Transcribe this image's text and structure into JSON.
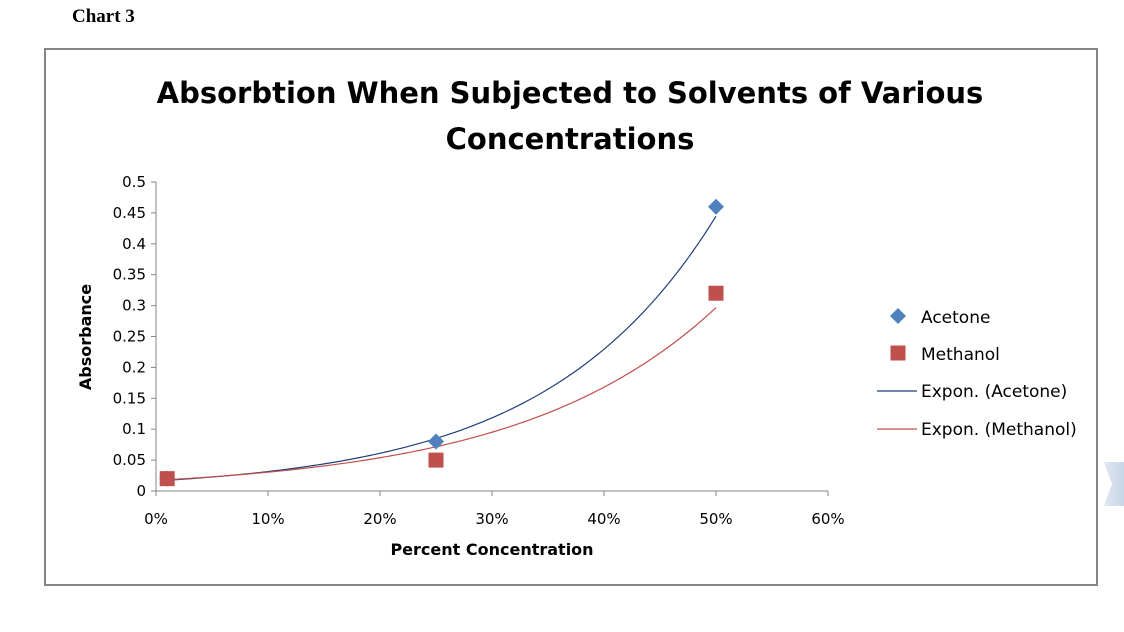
{
  "page": {
    "heading": "Chart 3"
  },
  "colors": {
    "acetone": "#4f81bd",
    "methanol": "#c0504d",
    "acetone_trend": "#1f3f7a",
    "methanol_trend": "#c0504d",
    "axis": "#868686"
  },
  "chart_data": {
    "type": "scatter",
    "title": "Absorbtion When Subjected to Solvents of Various Concentrations",
    "xlabel": "Percent Concentration",
    "ylabel": "Absorbance",
    "xlim": [
      0,
      0.6
    ],
    "ylim": [
      0,
      0.5
    ],
    "x_ticks": [
      0,
      0.1,
      0.2,
      0.3,
      0.4,
      0.5,
      0.6
    ],
    "x_tick_labels": [
      "0%",
      "10%",
      "20%",
      "30%",
      "40%",
      "50%",
      "60%"
    ],
    "y_ticks": [
      0,
      0.05,
      0.1,
      0.15,
      0.2,
      0.25,
      0.3,
      0.35,
      0.4,
      0.45,
      0.5
    ],
    "y_tick_labels": [
      "0",
      "0.05",
      "0.1",
      "0.15",
      "0.2",
      "0.25",
      "0.3",
      "0.35",
      "0.4",
      "0.45",
      "0.5"
    ],
    "grid": false,
    "legend_position": "right",
    "series": [
      {
        "name": "Acetone",
        "marker": "diamond",
        "x": [
          0.01,
          0.25,
          0.5
        ],
        "y": [
          0.02,
          0.08,
          0.46
        ]
      },
      {
        "name": "Methanol",
        "marker": "square",
        "x": [
          0.01,
          0.25,
          0.5
        ],
        "y": [
          0.02,
          0.05,
          0.32
        ]
      }
    ],
    "trendlines": [
      {
        "name": "Expon. (Acetone)",
        "type": "exponential",
        "x_range": [
          0.01,
          0.5
        ],
        "a": 0.01624,
        "b": 6.62
      },
      {
        "name": "Expon. (Methanol)",
        "type": "exponential",
        "x_range": [
          0.01,
          0.5
        ],
        "a": 0.01725,
        "b": 5.69
      }
    ]
  }
}
